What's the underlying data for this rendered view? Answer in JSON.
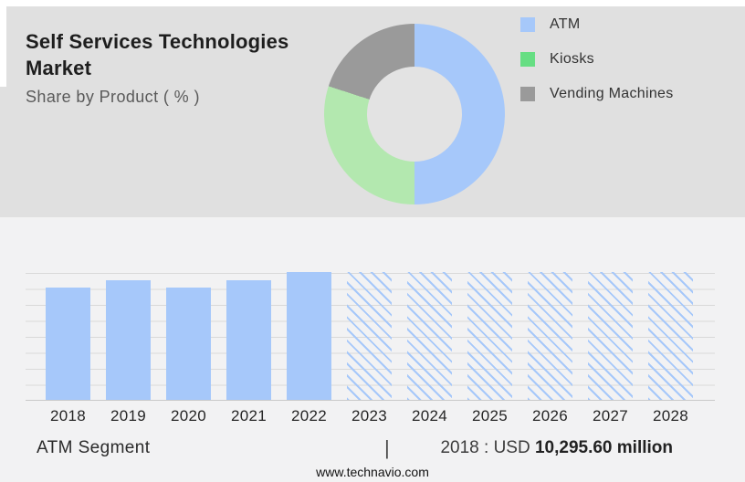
{
  "header": {
    "title_line1": "Self Services Technologies",
    "title_line2": "Market",
    "subtitle": "Share by Product ( % )"
  },
  "chart_data": [
    {
      "type": "pie",
      "subtype": "donut",
      "title": "Share by Product ( % )",
      "labels": [
        "ATM",
        "Kiosks",
        "Vending Machines"
      ],
      "values": [
        50,
        30,
        20
      ],
      "unit": "%",
      "colors": [
        "#a6c8fa",
        "#b3e8af",
        "#9a9a9a"
      ],
      "legend_marker_colors": [
        "#a6c8fa",
        "#66de83",
        "#9a9a9a"
      ],
      "legend_position": "right",
      "hole_color": "#e3e3e3",
      "hole_ratio": 0.52,
      "start_angle_deg": 0,
      "direction": "clockwise"
    },
    {
      "type": "bar",
      "title": "ATM Segment",
      "categories": [
        "2018",
        "2019",
        "2020",
        "2021",
        "2022",
        "2023",
        "2024",
        "2025",
        "2026",
        "2027",
        "2028"
      ],
      "series": [
        {
          "name": "ATM segment market size (relative bar height, no y-axis shown)",
          "relative_heights": [
            0.88,
            0.935,
            0.88,
            0.935,
            1,
            1,
            1,
            1,
            1,
            1,
            1
          ]
        }
      ],
      "bar_styles": [
        "solid",
        "solid",
        "solid",
        "solid",
        "solid",
        "hatched",
        "hatched",
        "hatched",
        "hatched",
        "hatched",
        "hatched"
      ],
      "bar_color": "#a6c8fa",
      "grid": true,
      "gridline_count": 9,
      "y_axis_labels_shown": false,
      "annotation": "2018 : USD 10,295.60 million"
    }
  ],
  "caption": {
    "segment_label": "ATM Segment",
    "separator": "|",
    "value_prefix": "2018 : USD ",
    "value_bold": "10,295.60 million"
  },
  "footer": {
    "website": "www.technavio.com"
  },
  "colors": {
    "top_background": "#e0e0e0",
    "bottom_background": "#f2f2f3",
    "accent_blue": "#a6c8fa",
    "accent_green_donut": "#b3e8af",
    "accent_green_legend": "#66de83",
    "accent_gray": "#9a9a9a",
    "gridline": "#d9d9d9"
  }
}
